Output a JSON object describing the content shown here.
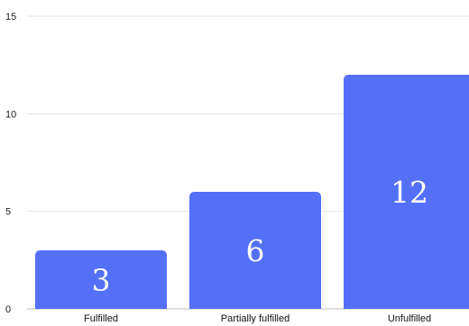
{
  "chart_data": {
    "type": "bar",
    "categories": [
      "Fulfilled",
      "Partially fulfilled",
      "Unfulfilled"
    ],
    "values": [
      3,
      6,
      12
    ],
    "ylim": [
      0,
      15
    ],
    "yticks": [
      0,
      5,
      10,
      15
    ],
    "grid": true,
    "data_labels": true,
    "bar_color": "#5470f7",
    "title": "",
    "xlabel": "",
    "ylabel": ""
  }
}
